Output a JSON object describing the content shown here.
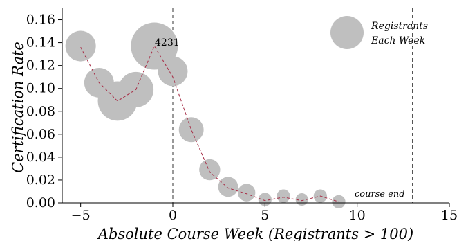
{
  "chart_data": {
    "type": "scatter",
    "xlabel": "Absolute Course Week (Registrants > 100)",
    "ylabel": "Certification Rate",
    "xlim": [
      -6,
      15
    ],
    "ylim": [
      0,
      0.17
    ],
    "xticks": [
      -5,
      0,
      5,
      10,
      15
    ],
    "yticks": [
      0.0,
      0.02,
      0.04,
      0.06,
      0.08,
      0.1,
      0.12,
      0.14,
      0.16
    ],
    "xtick_labels": [
      "−5",
      "0",
      "5",
      "10",
      "15"
    ],
    "ytick_labels": [
      "0.00",
      "0.02",
      "0.04",
      "0.06",
      "0.08",
      "0.10",
      "0.12",
      "0.14",
      "0.16"
    ],
    "grid": false,
    "legend": {
      "label_line1": "Registrants",
      "label_line2": "Each Week",
      "position": "top-right"
    },
    "bubble_color": "#bfbfbf",
    "trend_color": "#a8324a",
    "vlines": [
      {
        "x": 0,
        "style": "dashed"
      },
      {
        "x": 13,
        "style": "dashed"
      }
    ],
    "annotations": [
      {
        "text": "4231",
        "x": -1,
        "y": 0.137
      },
      {
        "text": "course end",
        "x": 13,
        "y": 0.008
      }
    ],
    "series": [
      {
        "points": [
          {
            "x": -5,
            "y": 0.137,
            "size": 0.42
          },
          {
            "x": -4,
            "y": 0.105,
            "size": 0.4
          },
          {
            "x": -3,
            "y": 0.089,
            "size": 0.7
          },
          {
            "x": -2,
            "y": 0.099,
            "size": 0.56
          },
          {
            "x": -1,
            "y": 0.137,
            "size": 1.0
          },
          {
            "x": 0,
            "y": 0.115,
            "size": 0.4
          },
          {
            "x": 1,
            "y": 0.064,
            "size": 0.28
          },
          {
            "x": 2,
            "y": 0.029,
            "size": 0.2
          },
          {
            "x": 3,
            "y": 0.014,
            "size": 0.18
          },
          {
            "x": 4,
            "y": 0.009,
            "size": 0.14
          },
          {
            "x": 5,
            "y": 0.003,
            "size": 0.08
          },
          {
            "x": 6,
            "y": 0.006,
            "size": 0.08
          },
          {
            "x": 7,
            "y": 0.003,
            "size": 0.07
          },
          {
            "x": 8,
            "y": 0.006,
            "size": 0.08
          },
          {
            "x": 9,
            "y": 0.001,
            "size": 0.08
          }
        ]
      }
    ],
    "trend": {
      "x": [
        -5,
        -4,
        -3,
        -2,
        -1,
        0,
        1,
        2,
        3,
        4,
        5,
        6,
        7,
        8,
        9
      ],
      "y": [
        0.136,
        0.105,
        0.089,
        0.099,
        0.137,
        0.11,
        0.064,
        0.027,
        0.013,
        0.008,
        0.002,
        0.005,
        0.002,
        0.006,
        0.001
      ]
    }
  }
}
